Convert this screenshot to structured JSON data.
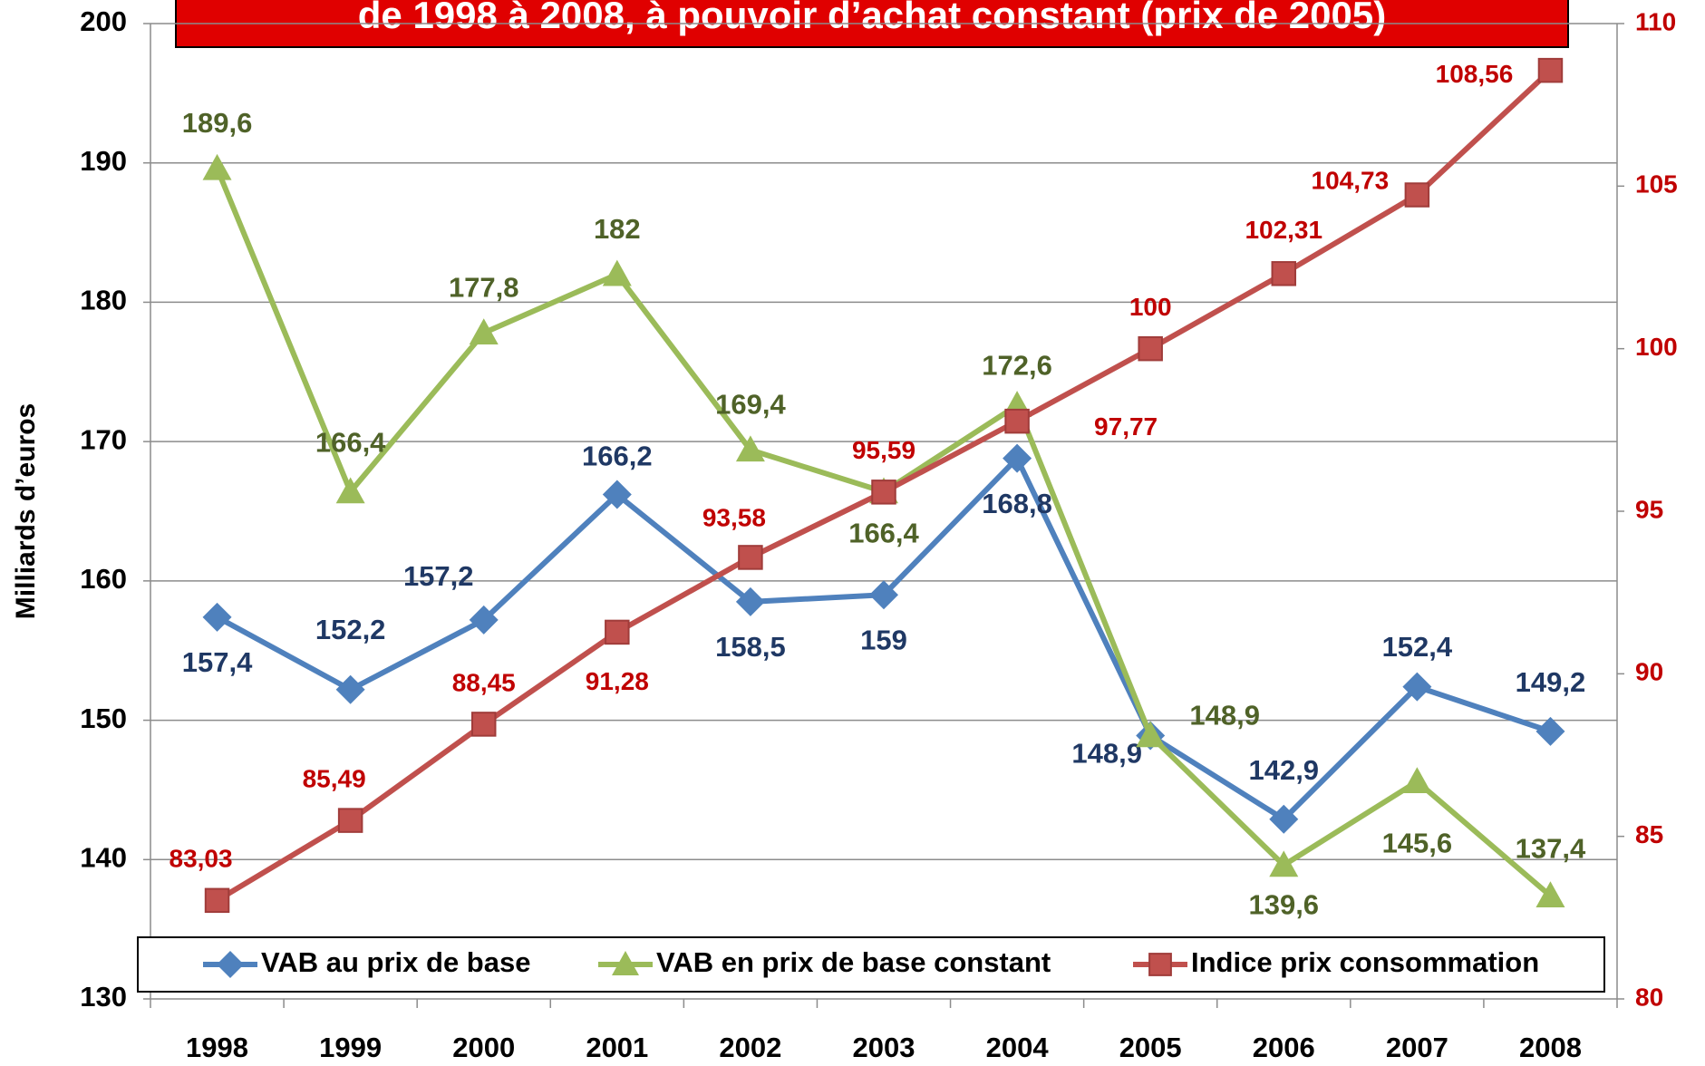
{
  "chart_data": {
    "type": "line",
    "title": "de 1998 à 2008, à pouvoir d’achat constant (prix de 2005)",
    "y_label": "Milliards d’euros",
    "categories": [
      "1998",
      "1999",
      "2000",
      "2001",
      "2002",
      "2003",
      "2004",
      "2005",
      "2006",
      "2007",
      "2008"
    ],
    "ylim": [
      130,
      200
    ],
    "yticks": [
      130,
      140,
      150,
      160,
      170,
      180,
      190,
      200
    ],
    "y2lim": [
      80,
      110
    ],
    "y2ticks": [
      80,
      85,
      90,
      95,
      100,
      105,
      110
    ],
    "grid": true,
    "legend": "bottom",
    "series": [
      {
        "name": "VAB au prix de base",
        "color": "#4f81bd",
        "label_color": "#1f3864",
        "marker": "diamond",
        "values": [
          157.4,
          152.2,
          157.2,
          166.2,
          158.5,
          159,
          168.8,
          148.9,
          142.9,
          152.4,
          149.2
        ],
        "value_labels": [
          "157,4",
          "152,2",
          "157,2",
          "166,2",
          "158,5",
          "159",
          "168,8",
          "148,9",
          "142,9",
          "152,4",
          "149,2"
        ]
      },
      {
        "name": "VAB en prix de base constant",
        "color": "#9bbb59",
        "label_color": "#4f6228",
        "marker": "triangle",
        "values": [
          189.6,
          166.4,
          177.8,
          182,
          169.4,
          166.4,
          172.6,
          148.9,
          139.6,
          145.6,
          137.4
        ],
        "value_labels": [
          "189,6",
          "166,4",
          "177,8",
          "182",
          "169,4",
          "166,4",
          "172,6",
          "148,9",
          "139,6",
          "145,6",
          "137,4"
        ]
      },
      {
        "name": "Indice prix consommation",
        "color": "#c0504d",
        "label_color": "#c00000",
        "marker": "square",
        "axis": "y2",
        "values": [
          83.03,
          85.49,
          88.45,
          91.28,
          93.58,
          95.59,
          97.77,
          100,
          102.31,
          104.73,
          108.56
        ],
        "value_labels": [
          "83,03",
          "85,49",
          "88,45",
          "91,28",
          "93,58",
          "95,59",
          "97,77",
          "100",
          "102,31",
          "104,73",
          "108,56"
        ]
      }
    ]
  }
}
